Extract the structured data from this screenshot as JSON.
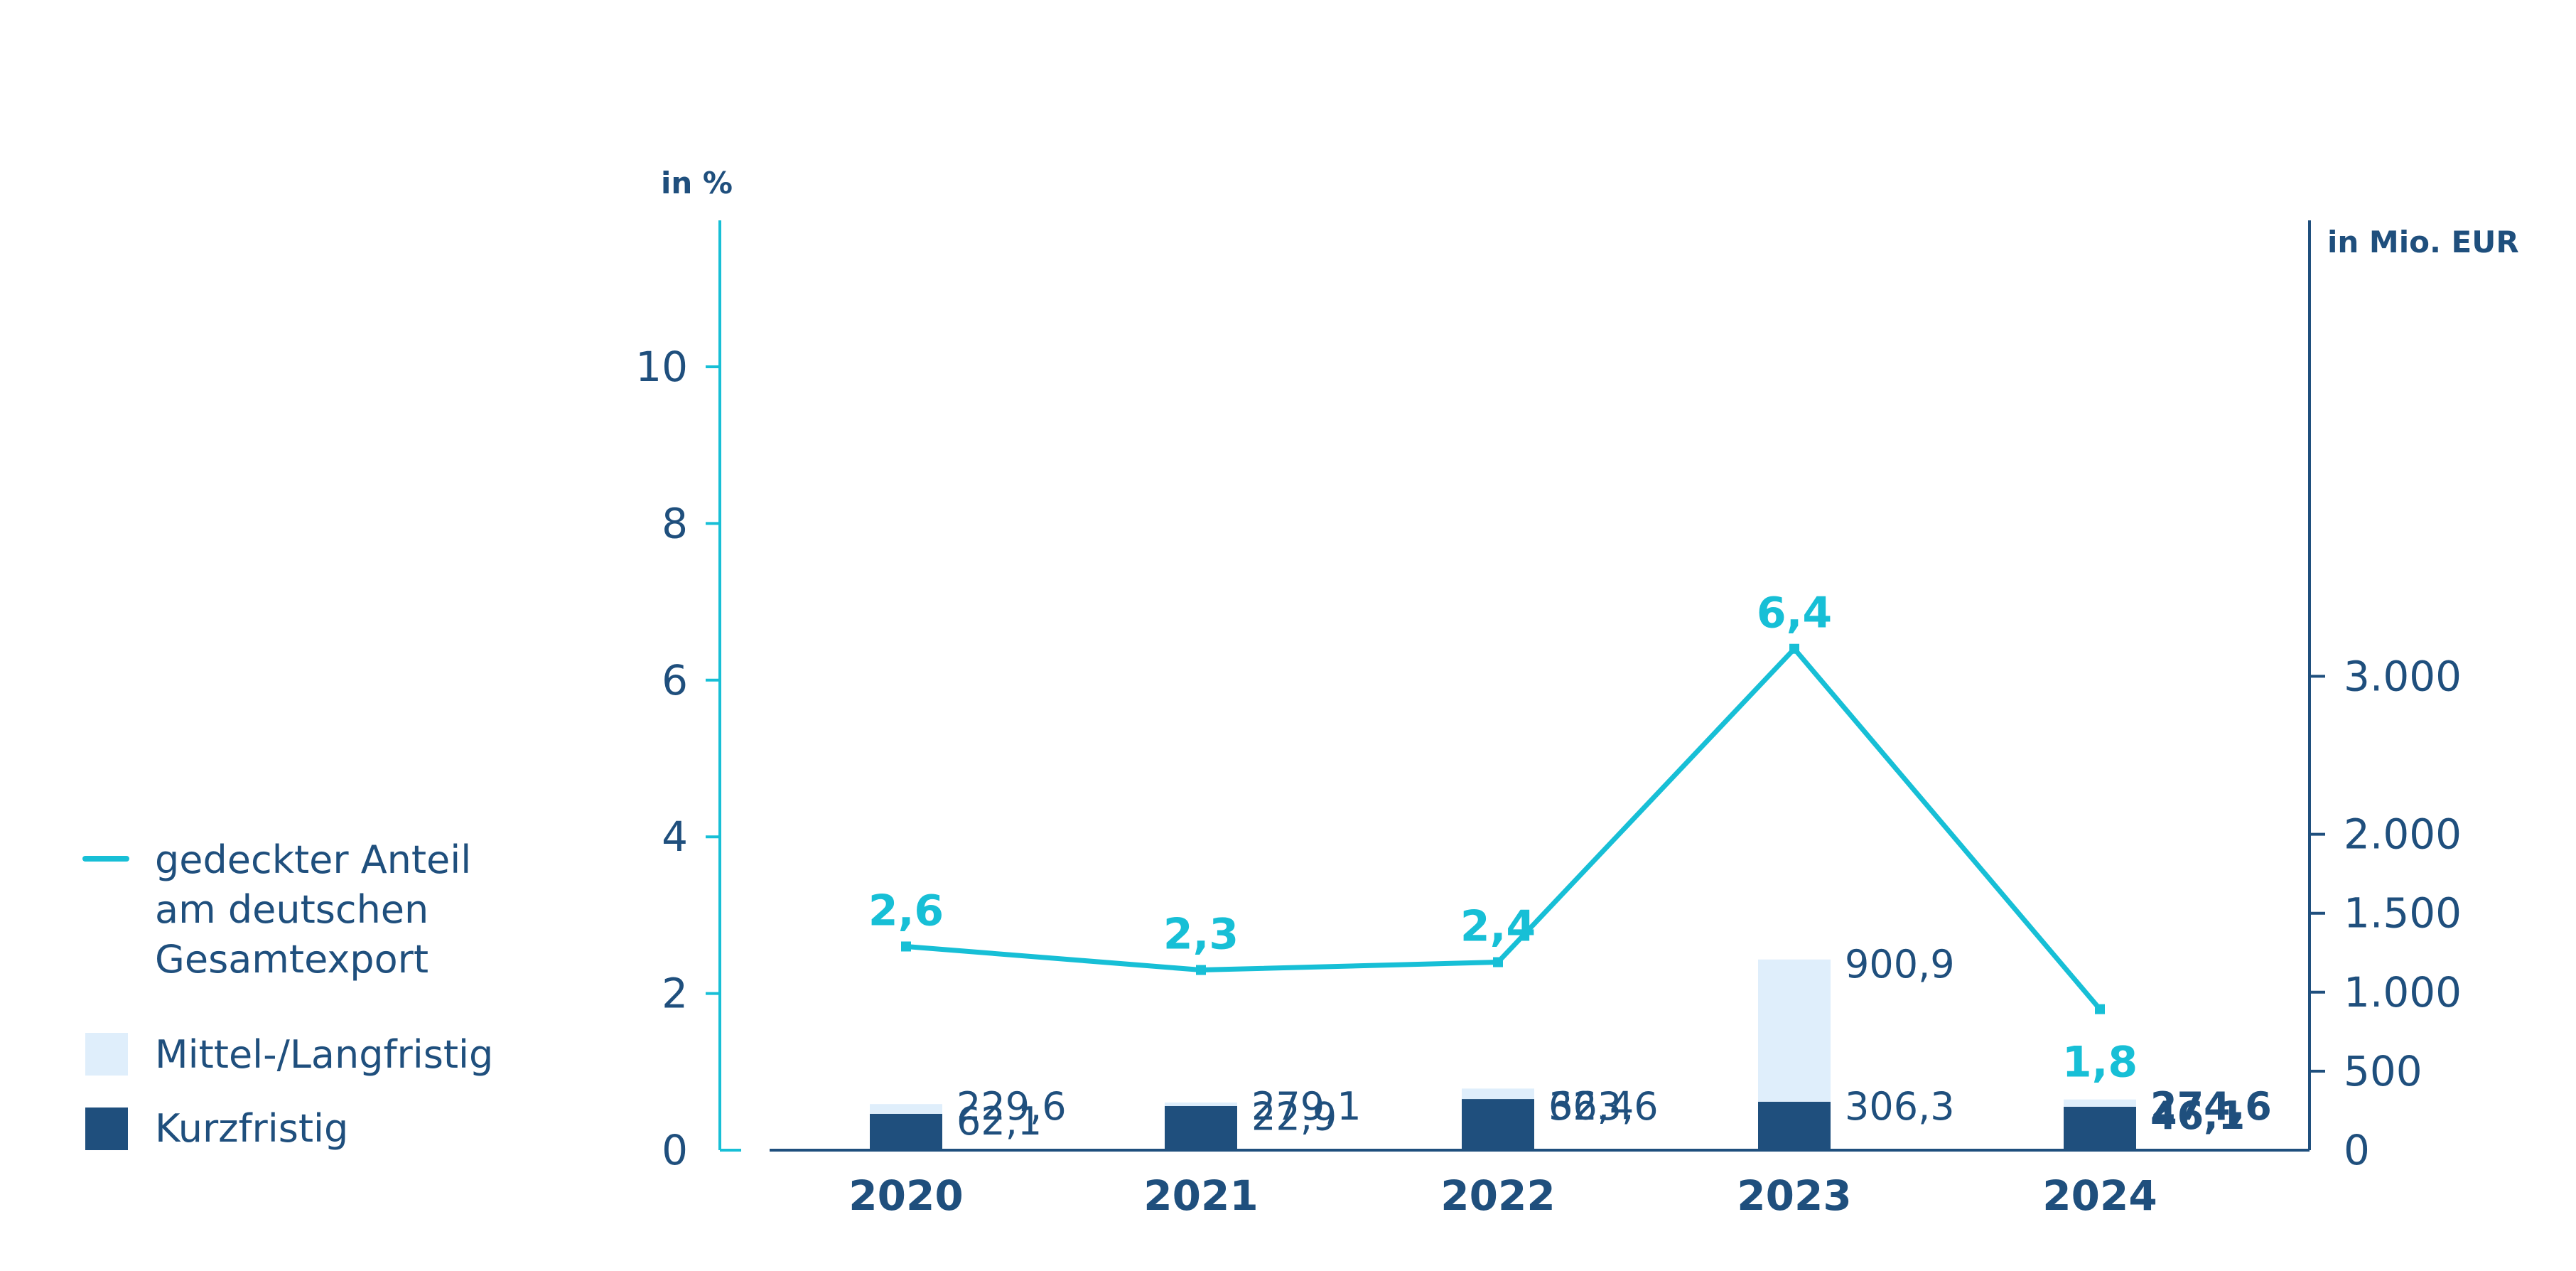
{
  "chart_data": {
    "type": "bar",
    "categories": [
      "2020",
      "2021",
      "2022",
      "2023",
      "2024"
    ],
    "series": [
      {
        "name": "Kurzfristig",
        "type": "bar",
        "axis": "right",
        "color": "#1f4f7d",
        "values": [
          229.6,
          279.1,
          323.6,
          306.3,
          274.6
        ],
        "labels": [
          "229,6",
          "279,1",
          "323,6",
          "306,3",
          "274,6"
        ]
      },
      {
        "name": "Mittel-/Langfristig",
        "type": "bar",
        "axis": "right",
        "color": "#dfeefb",
        "values": [
          62.1,
          22.9,
          66.4,
          900.9,
          46.1
        ],
        "labels": [
          "62,1",
          "22,9",
          "66,4",
          "900,9",
          "46,1"
        ]
      },
      {
        "name": "gedeckter Anteil am deutschen Gesamtexport",
        "type": "line",
        "axis": "left",
        "color": "#17bfd6",
        "values": [
          2.6,
          2.3,
          2.4,
          6.4,
          1.8
        ],
        "labels": [
          "2,6",
          "2,3",
          "2,4",
          "6,4",
          "1,8"
        ]
      }
    ],
    "left_axis": {
      "unit_label": "in %",
      "ylim": [
        0,
        12
      ],
      "ticks": [
        0,
        2,
        4,
        6,
        8,
        10
      ],
      "tick_labels": [
        "0",
        "2",
        "4",
        "6",
        "8",
        "10"
      ],
      "color": "#17bfd6"
    },
    "right_axis": {
      "unit_label": "in Mio. EUR",
      "ylim": [
        0,
        3500
      ],
      "ticks": [
        0,
        500,
        1000,
        1500,
        2000,
        3000
      ],
      "tick_labels": [
        "0",
        "500",
        "1.000",
        "1.500",
        "2.000",
        "3.000"
      ],
      "color": "#1f4f7d"
    },
    "bold_labels_last_category": true,
    "grid": false,
    "legend_position": "left"
  },
  "legend": {
    "line_label_lines": [
      "gedeckter Anteil",
      "am deutschen",
      "Gesamtexport"
    ],
    "medium_label": "Mittel-/Langfristig",
    "short_label": "Kurzfristig"
  }
}
